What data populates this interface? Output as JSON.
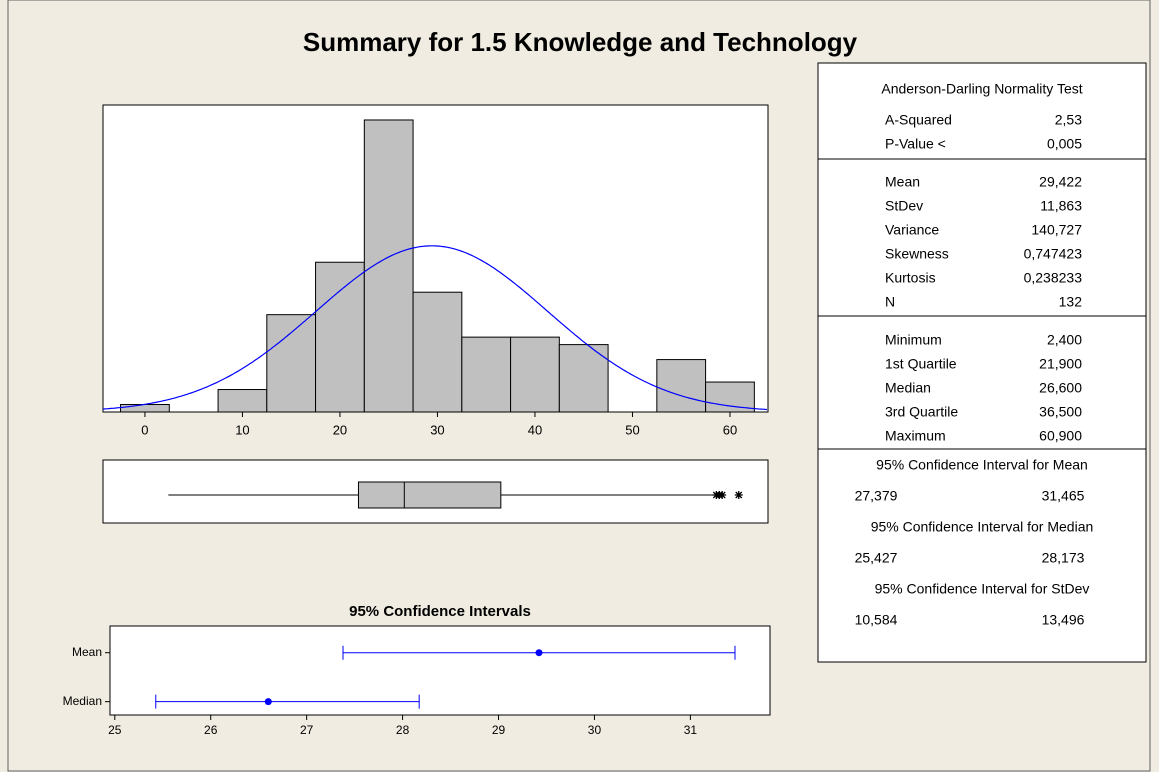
{
  "chart_data": [
    {
      "type": "histogram",
      "title": "Summary for 1.5 Knowledge and Technology",
      "bins": [
        -2.5,
        2.5,
        7.5,
        12.5,
        17.5,
        22.5,
        27.5,
        32.5,
        37.5,
        42.5,
        47.5,
        52.5,
        57.5,
        62.5
      ],
      "values": [
        1,
        0,
        3,
        13,
        20,
        39,
        16,
        10,
        10,
        9,
        0,
        7,
        4
      ],
      "color": "#c0c0c0",
      "fit": {
        "mean": 29.422,
        "sd": 11.863,
        "color": "#0000ff"
      },
      "xlim": [
        -4.3,
        63.9
      ],
      "xticks": [
        0,
        10,
        20,
        30,
        40,
        50,
        60
      ],
      "ylim": [
        0,
        41
      ]
    },
    {
      "type": "boxplot",
      "min": 2.4,
      "q1": 21.9,
      "median": 26.6,
      "q3": 36.5,
      "whisker_high": 58.3,
      "outliers": [
        58.6,
        58.9,
        59.2,
        60.9
      ],
      "color": "#c0c0c0",
      "xlim": [
        -4.3,
        63.9
      ]
    },
    {
      "type": "interval",
      "title": "95% Confidence Intervals",
      "categories": [
        "Mean",
        "Median"
      ],
      "values": [
        29.422,
        26.6
      ],
      "lower": [
        27.379,
        25.427
      ],
      "upper": [
        31.465,
        28.173
      ],
      "color": "#0000ff",
      "xlim": [
        24.95,
        31.83
      ],
      "xticks": [
        25,
        26,
        27,
        28,
        29,
        30,
        31
      ]
    }
  ],
  "summary_table": {
    "sections": [
      {
        "title": "Anderson-Darling Normality Test",
        "rows": [
          [
            "A-Squared",
            "2,53"
          ],
          [
            "P-Value <",
            "0,005"
          ]
        ]
      },
      {
        "rows": [
          [
            "Mean",
            "29,422"
          ],
          [
            "StDev",
            "11,863"
          ],
          [
            "Variance",
            "140,727"
          ],
          [
            "Skewness",
            "0,747423"
          ],
          [
            "Kurtosis",
            "0,238233"
          ],
          [
            "N",
            "132"
          ]
        ]
      },
      {
        "rows": [
          [
            "Minimum",
            "2,400"
          ],
          [
            "1st Quartile",
            "21,900"
          ],
          [
            "Median",
            "26,600"
          ],
          [
            "3rd Quartile",
            "36,500"
          ],
          [
            "Maximum",
            "60,900"
          ]
        ]
      }
    ],
    "intervals": [
      {
        "title": "95% Confidence Interval for Mean",
        "low": "27,379",
        "high": "31,465"
      },
      {
        "title": "95% Confidence Interval for Median",
        "low": "25,427",
        "high": "28,173"
      },
      {
        "title": "95% Confidence Interval for StDev",
        "low": "10,584",
        "high": "13,496"
      }
    ]
  }
}
